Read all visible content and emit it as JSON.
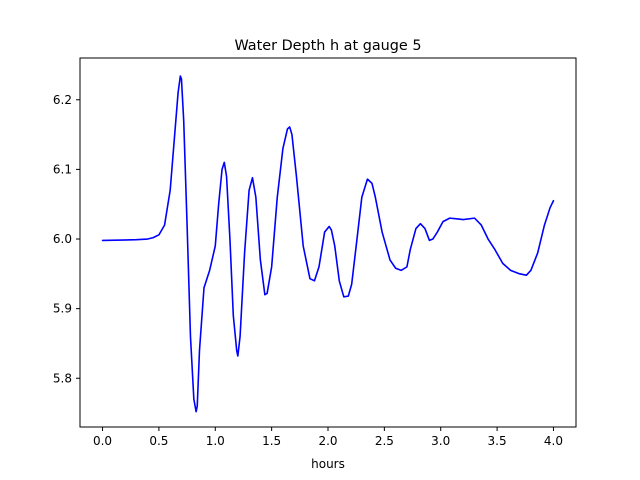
{
  "chart_data": {
    "type": "line",
    "title": "Water Depth h at gauge 5",
    "xlabel": "hours",
    "ylabel": "",
    "xlim": [
      -0.2,
      4.2
    ],
    "ylim": [
      5.73,
      6.26
    ],
    "xticks": [
      0.0,
      0.5,
      1.0,
      1.5,
      2.0,
      2.5,
      3.0,
      3.5,
      4.0
    ],
    "xtick_labels": [
      "0.0",
      "0.5",
      "1.0",
      "1.5",
      "2.0",
      "2.5",
      "3.0",
      "3.5",
      "4.0"
    ],
    "yticks": [
      5.8,
      5.9,
      6.0,
      6.1,
      6.2
    ],
    "ytick_labels": [
      "5.8",
      "5.9",
      "6.0",
      "6.1",
      "6.2"
    ],
    "grid": false,
    "legend": "none",
    "series": [
      {
        "color": "#0000ff",
        "x": [
          0.0,
          0.3,
          0.4,
          0.45,
          0.5,
          0.55,
          0.6,
          0.64,
          0.67,
          0.69,
          0.7,
          0.72,
          0.75,
          0.78,
          0.81,
          0.83,
          0.84,
          0.86,
          0.9,
          0.95,
          1.0,
          1.03,
          1.06,
          1.08,
          1.1,
          1.13,
          1.16,
          1.19,
          1.2,
          1.22,
          1.26,
          1.3,
          1.33,
          1.36,
          1.4,
          1.44,
          1.46,
          1.5,
          1.55,
          1.6,
          1.64,
          1.66,
          1.68,
          1.72,
          1.78,
          1.84,
          1.88,
          1.92,
          1.97,
          2.01,
          2.03,
          2.06,
          2.1,
          2.14,
          2.18,
          2.21,
          2.25,
          2.3,
          2.35,
          2.39,
          2.42,
          2.48,
          2.55,
          2.6,
          2.65,
          2.7,
          2.73,
          2.78,
          2.82,
          2.86,
          2.9,
          2.93,
          2.97,
          3.02,
          3.08,
          3.14,
          3.2,
          3.3,
          3.36,
          3.42,
          3.48,
          3.55,
          3.62,
          3.7,
          3.76,
          3.8,
          3.86,
          3.92,
          3.97,
          4.0
        ],
        "y": [
          5.998,
          5.999,
          6.0,
          6.002,
          6.006,
          6.02,
          6.07,
          6.15,
          6.21,
          6.234,
          6.23,
          6.17,
          6.02,
          5.86,
          5.77,
          5.752,
          5.76,
          5.84,
          5.93,
          5.955,
          5.99,
          6.05,
          6.1,
          6.11,
          6.09,
          6.0,
          5.89,
          5.84,
          5.832,
          5.86,
          5.98,
          6.07,
          6.088,
          6.06,
          5.97,
          5.92,
          5.922,
          5.96,
          6.06,
          6.13,
          6.158,
          6.161,
          6.15,
          6.09,
          5.99,
          5.943,
          5.94,
          5.96,
          6.01,
          6.018,
          6.013,
          5.99,
          5.94,
          5.917,
          5.918,
          5.935,
          5.99,
          6.06,
          6.086,
          6.08,
          6.06,
          6.01,
          5.97,
          5.958,
          5.955,
          5.96,
          5.985,
          6.015,
          6.022,
          6.015,
          5.998,
          6.0,
          6.01,
          6.025,
          6.03,
          6.029,
          6.028,
          6.03,
          6.02,
          6.0,
          5.985,
          5.965,
          5.955,
          5.95,
          5.948,
          5.955,
          5.98,
          6.02,
          6.045,
          6.055
        ]
      }
    ]
  }
}
